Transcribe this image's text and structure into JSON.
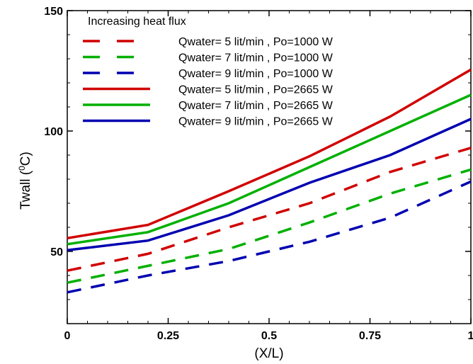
{
  "chart_data": {
    "type": "line",
    "title": "",
    "xlabel": "(X/L)",
    "ylabel": {
      "main": "Twall (",
      "sup": "0",
      "end": "C)"
    },
    "xlim": [
      0,
      1
    ],
    "ylim": [
      20,
      150
    ],
    "x_ticks": [
      0,
      0.25,
      0.5,
      0.75,
      1
    ],
    "x_tick_labels": [
      "0",
      "0.25",
      "0.5",
      "0.75",
      "1"
    ],
    "y_ticks": [
      50,
      100,
      150
    ],
    "y_tick_labels": [
      "50",
      "100",
      "150"
    ],
    "grid": false,
    "legend_title": "Increasing heat flux",
    "legend_position": "top-left",
    "series": [
      {
        "name": "Qwater= 5 lit/min , Po=1000 W",
        "color": "#d00000",
        "style": "dashed",
        "x": [
          0,
          0.2,
          0.4,
          0.6,
          0.8,
          1.0
        ],
        "y": [
          42,
          49,
          60,
          70,
          83,
          93
        ]
      },
      {
        "name": "Qwater= 7 lit/min , Po=1000 W",
        "color": "#00b000",
        "style": "dashed",
        "x": [
          0,
          0.2,
          0.4,
          0.6,
          0.8,
          1.0
        ],
        "y": [
          37,
          44,
          51,
          62,
          74,
          84
        ]
      },
      {
        "name": "Qwater= 9 lit/min , Po=1000 W",
        "color": "#0000b0",
        "style": "dashed",
        "x": [
          0,
          0.2,
          0.4,
          0.6,
          0.8,
          1.0
        ],
        "y": [
          33,
          40,
          46,
          54,
          64,
          79
        ]
      },
      {
        "name": "Qwater= 5 lit/min , Po=2665 W",
        "color": "#d00000",
        "style": "solid",
        "x": [
          0,
          0.2,
          0.4,
          0.6,
          0.8,
          1.0
        ],
        "y": [
          55.5,
          61,
          75,
          89.5,
          106,
          125.5
        ]
      },
      {
        "name": "Qwater= 7 lit/min , Po=2665 W",
        "color": "#00b000",
        "style": "solid",
        "x": [
          0,
          0.2,
          0.4,
          0.6,
          0.8,
          1.0
        ],
        "y": [
          53,
          58,
          70,
          85,
          100,
          115
        ]
      },
      {
        "name": "Qwater= 9 lit/min , Po=2665 W",
        "color": "#0000b0",
        "style": "solid",
        "x": [
          0,
          0.2,
          0.4,
          0.6,
          0.8,
          1.0
        ],
        "y": [
          50.5,
          54.5,
          65,
          78.5,
          90,
          105
        ]
      }
    ]
  }
}
